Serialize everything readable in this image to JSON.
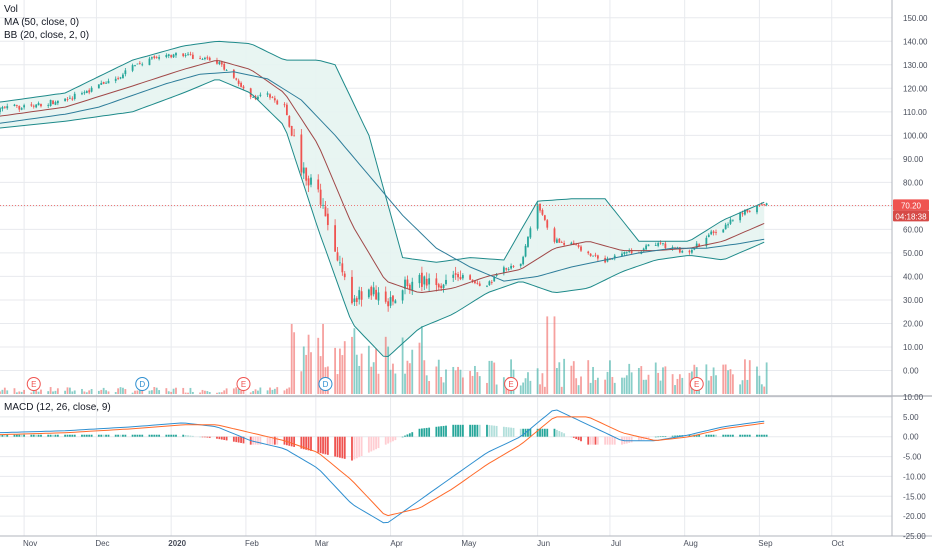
{
  "chart_data": [
    {
      "type": "candlestick",
      "name": "price-panel",
      "legend": [
        "Vol",
        "MA (50, close, 0)",
        "BB (20, close, 2, 0)"
      ],
      "ylim": [
        -10,
        155
      ],
      "y_ticks": [
        "150.00",
        "140.00",
        "130.00",
        "120.00",
        "110.00",
        "100.00",
        "90.00",
        "80.00",
        "70.00",
        "60.00",
        "50.00",
        "40.00",
        "30.00",
        "20.00",
        "10.00",
        "0.00"
      ],
      "y_tick_values": [
        150,
        140,
        130,
        120,
        110,
        100,
        90,
        80,
        70,
        60,
        50,
        40,
        30,
        20,
        10,
        0
      ],
      "last_price": "70.20",
      "countdown": "04:18:38",
      "last_price_value": 70.2,
      "x_ticks": [
        "Nov",
        "Dec",
        "2020",
        "Feb",
        "Mar",
        "Apr",
        "May",
        "Jun",
        "Jul",
        "Aug",
        "Sep",
        "Oct"
      ],
      "events": [
        {
          "label": "E",
          "date": "2019-11-05",
          "kind": "earnings"
        },
        {
          "label": "D",
          "date": "2019-12-20",
          "kind": "dividend"
        },
        {
          "label": "E",
          "date": "2020-01-31",
          "kind": "earnings"
        },
        {
          "label": "D",
          "date": "2020-03-05",
          "kind": "dividend"
        },
        {
          "label": "E",
          "date": "2020-05-21",
          "kind": "earnings"
        },
        {
          "label": "E",
          "date": "2020-08-06",
          "kind": "earnings"
        }
      ],
      "close_weekly": [
        [
          "2019-10-21",
          111
        ],
        [
          "2019-10-28",
          112
        ],
        [
          "2019-11-04",
          112
        ],
        [
          "2019-11-11",
          114
        ],
        [
          "2019-11-18",
          115
        ],
        [
          "2019-11-25",
          118
        ],
        [
          "2019-12-02",
          121
        ],
        [
          "2019-12-09",
          124
        ],
        [
          "2019-12-16",
          129
        ],
        [
          "2019-12-23",
          132
        ],
        [
          "2019-12-30",
          134
        ],
        [
          "2020-01-06",
          134
        ],
        [
          "2020-01-13",
          133
        ],
        [
          "2020-01-20",
          131
        ],
        [
          "2020-01-27",
          125
        ],
        [
          "2020-02-03",
          116
        ],
        [
          "2020-02-10",
          117
        ],
        [
          "2020-02-17",
          112
        ],
        [
          "2020-02-24",
          86
        ],
        [
          "2020-03-02",
          75
        ],
        [
          "2020-03-09",
          50
        ],
        [
          "2020-03-16",
          30
        ],
        [
          "2020-03-23",
          35
        ],
        [
          "2020-03-30",
          28
        ],
        [
          "2020-04-06",
          36
        ],
        [
          "2020-04-13",
          38
        ],
        [
          "2020-04-20",
          36
        ],
        [
          "2020-04-27",
          42
        ],
        [
          "2020-05-04",
          38
        ],
        [
          "2020-05-11",
          36
        ],
        [
          "2020-05-18",
          43
        ],
        [
          "2020-05-25",
          46
        ],
        [
          "2020-06-01",
          70
        ],
        [
          "2020-06-08",
          55
        ],
        [
          "2020-06-15",
          54
        ],
        [
          "2020-06-22",
          49
        ],
        [
          "2020-06-29",
          47
        ],
        [
          "2020-07-06",
          50
        ],
        [
          "2020-07-13",
          51
        ],
        [
          "2020-07-20",
          54
        ],
        [
          "2020-07-27",
          52
        ],
        [
          "2020-08-03",
          50
        ],
        [
          "2020-08-10",
          57
        ],
        [
          "2020-08-17",
          61
        ],
        [
          "2020-08-24",
          66
        ],
        [
          "2020-08-31",
          70.2
        ]
      ],
      "ma50_weekly": [
        [
          "2019-10-21",
          105
        ],
        [
          "2019-11-04",
          107
        ],
        [
          "2019-11-18",
          109
        ],
        [
          "2019-12-02",
          112
        ],
        [
          "2019-12-16",
          117
        ],
        [
          "2019-12-30",
          122
        ],
        [
          "2020-01-13",
          126
        ],
        [
          "2020-01-27",
          127
        ],
        [
          "2020-02-10",
          124
        ],
        [
          "2020-02-24",
          115
        ],
        [
          "2020-03-09",
          100
        ],
        [
          "2020-03-23",
          83
        ],
        [
          "2020-04-06",
          66
        ],
        [
          "2020-04-20",
          52
        ],
        [
          "2020-05-04",
          44
        ],
        [
          "2020-05-18",
          38
        ],
        [
          "2020-06-01",
          40
        ],
        [
          "2020-06-15",
          44
        ],
        [
          "2020-06-29",
          47
        ],
        [
          "2020-07-13",
          50
        ],
        [
          "2020-07-27",
          52
        ],
        [
          "2020-08-10",
          52
        ],
        [
          "2020-08-24",
          54
        ],
        [
          "2020-09-04",
          56
        ]
      ],
      "bb_mid_weekly": [
        [
          "2019-10-21",
          108
        ],
        [
          "2019-11-18",
          112
        ],
        [
          "2019-12-16",
          121
        ],
        [
          "2020-01-06",
          128
        ],
        [
          "2020-01-20",
          132
        ],
        [
          "2020-02-03",
          128
        ],
        [
          "2020-02-17",
          118
        ],
        [
          "2020-03-02",
          96
        ],
        [
          "2020-03-16",
          62
        ],
        [
          "2020-03-30",
          38
        ],
        [
          "2020-04-13",
          33
        ],
        [
          "2020-04-27",
          35
        ],
        [
          "2020-05-11",
          40
        ],
        [
          "2020-05-25",
          43
        ],
        [
          "2020-06-08",
          52
        ],
        [
          "2020-06-22",
          55
        ],
        [
          "2020-07-06",
          51
        ],
        [
          "2020-07-20",
          51
        ],
        [
          "2020-08-03",
          52
        ],
        [
          "2020-08-17",
          55
        ],
        [
          "2020-09-04",
          63
        ]
      ],
      "bb_upper_weekly": [
        [
          "2019-10-21",
          114
        ],
        [
          "2019-11-18",
          118
        ],
        [
          "2019-12-16",
          132
        ],
        [
          "2020-01-06",
          138
        ],
        [
          "2020-01-20",
          140
        ],
        [
          "2020-02-03",
          139
        ],
        [
          "2020-02-17",
          132
        ],
        [
          "2020-03-02",
          132
        ],
        [
          "2020-03-09",
          130
        ],
        [
          "2020-03-23",
          100
        ],
        [
          "2020-04-06",
          48
        ],
        [
          "2020-04-20",
          46
        ],
        [
          "2020-05-04",
          48
        ],
        [
          "2020-05-18",
          47
        ],
        [
          "2020-06-01",
          72
        ],
        [
          "2020-06-15",
          73
        ],
        [
          "2020-06-29",
          73
        ],
        [
          "2020-07-13",
          55
        ],
        [
          "2020-08-03",
          55
        ],
        [
          "2020-08-17",
          64
        ],
        [
          "2020-09-04",
          72
        ]
      ],
      "bb_lower_weekly": [
        [
          "2019-10-21",
          103
        ],
        [
          "2019-11-18",
          106
        ],
        [
          "2019-12-16",
          110
        ],
        [
          "2020-01-06",
          118
        ],
        [
          "2020-01-20",
          124
        ],
        [
          "2020-02-03",
          118
        ],
        [
          "2020-02-17",
          104
        ],
        [
          "2020-03-02",
          60
        ],
        [
          "2020-03-16",
          20
        ],
        [
          "2020-03-30",
          5
        ],
        [
          "2020-04-13",
          18
        ],
        [
          "2020-04-27",
          24
        ],
        [
          "2020-05-11",
          33
        ],
        [
          "2020-05-25",
          38
        ],
        [
          "2020-06-08",
          33
        ],
        [
          "2020-06-22",
          35
        ],
        [
          "2020-07-06",
          42
        ],
        [
          "2020-07-20",
          47
        ],
        [
          "2020-08-03",
          49
        ],
        [
          "2020-08-17",
          47
        ],
        [
          "2020-09-04",
          55
        ]
      ]
    },
    {
      "type": "macd",
      "name": "macd-panel",
      "legend": "MACD (12, 26, close, 9)",
      "ylim": [
        -25,
        10
      ],
      "y_ticks": [
        "10.00",
        "5.00",
        "0.00",
        "-5.00",
        "-10.00",
        "-15.00",
        "-20.00",
        "-25.00"
      ],
      "y_tick_values": [
        10,
        5,
        0,
        -5,
        -10,
        -15,
        -20,
        -25
      ],
      "macd_weekly": [
        [
          "2019-10-21",
          1
        ],
        [
          "2019-11-18",
          1.5
        ],
        [
          "2019-12-16",
          2.5
        ],
        [
          "2020-01-06",
          3.5
        ],
        [
          "2020-01-20",
          2.5
        ],
        [
          "2020-02-03",
          -1
        ],
        [
          "2020-02-17",
          -3
        ],
        [
          "2020-03-02",
          -8
        ],
        [
          "2020-03-16",
          -17
        ],
        [
          "2020-03-30",
          -22
        ],
        [
          "2020-04-13",
          -16
        ],
        [
          "2020-04-27",
          -10
        ],
        [
          "2020-05-11",
          -4
        ],
        [
          "2020-05-25",
          0
        ],
        [
          "2020-06-08",
          7
        ],
        [
          "2020-06-22",
          3
        ],
        [
          "2020-07-06",
          -1
        ],
        [
          "2020-07-20",
          -1
        ],
        [
          "2020-08-03",
          0.5
        ],
        [
          "2020-08-17",
          2.5
        ],
        [
          "2020-09-04",
          4
        ]
      ],
      "signal_weekly": [
        [
          "2019-10-21",
          0.5
        ],
        [
          "2019-11-18",
          1
        ],
        [
          "2019-12-16",
          2
        ],
        [
          "2020-01-06",
          3
        ],
        [
          "2020-01-20",
          3
        ],
        [
          "2020-02-03",
          1
        ],
        [
          "2020-02-17",
          -1
        ],
        [
          "2020-03-02",
          -4
        ],
        [
          "2020-03-16",
          -11
        ],
        [
          "2020-03-30",
          -20
        ],
        [
          "2020-04-13",
          -18
        ],
        [
          "2020-04-27",
          -13
        ],
        [
          "2020-05-11",
          -7
        ],
        [
          "2020-05-25",
          -2
        ],
        [
          "2020-06-08",
          5
        ],
        [
          "2020-06-22",
          5
        ],
        [
          "2020-07-06",
          1
        ],
        [
          "2020-07-20",
          -1
        ],
        [
          "2020-08-03",
          0
        ],
        [
          "2020-08-17",
          2
        ],
        [
          "2020-09-04",
          3.5
        ]
      ]
    }
  ],
  "colors": {
    "up": "#26a69a",
    "down": "#ef5350",
    "ma50": "#2e7d9a",
    "bb_mid": "#a04848",
    "bb_band": "#1e8a8a",
    "bb_fill": "#e6f4f1",
    "macd": "#2f8fd0",
    "signal": "#ff6a2a",
    "price_line": "#ef5350",
    "grid": "#e8eaee"
  }
}
